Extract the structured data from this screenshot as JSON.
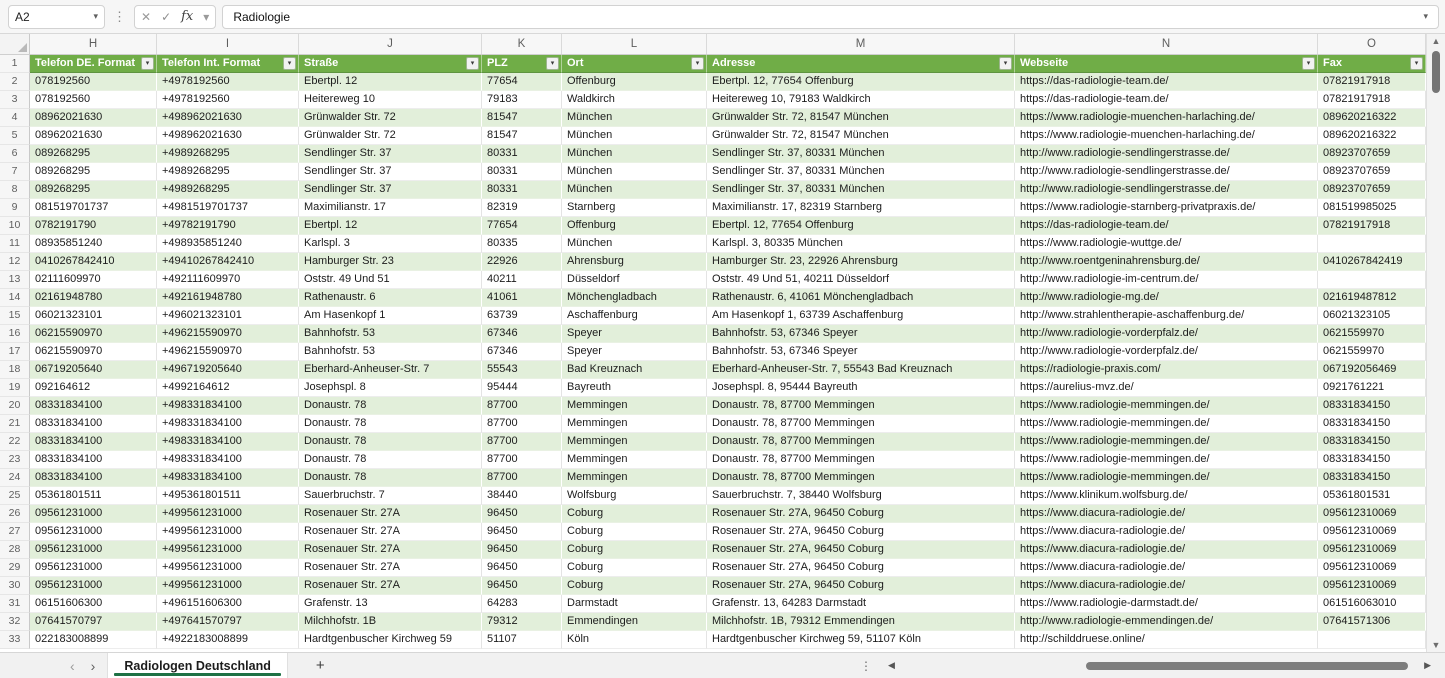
{
  "formula_bar": {
    "cell_reference": "A2",
    "formula_value": "Radiologie"
  },
  "grid": {
    "column_letters": [
      "H",
      "I",
      "J",
      "K",
      "L",
      "M",
      "N",
      "O"
    ],
    "header_row_number": "1",
    "headers": [
      "Telefon DE. Format",
      "Telefon Int. Format",
      "Straße",
      "PLZ",
      "Ort",
      "Adresse",
      "Webseite",
      "Fax"
    ],
    "first_data_row": 2,
    "rows": [
      [
        "078192560",
        "+4978192560",
        "Ebertpl. 12",
        "77654",
        "Offenburg",
        "Ebertpl. 12, 77654 Offenburg",
        "https://das-radiologie-team.de/",
        "07821917918"
      ],
      [
        "078192560",
        "+4978192560",
        "Heitereweg 10",
        "79183",
        "Waldkirch",
        "Heitereweg 10, 79183 Waldkirch",
        "https://das-radiologie-team.de/",
        "07821917918"
      ],
      [
        "08962021630",
        "+498962021630",
        "Grünwalder Str. 72",
        "81547",
        "München",
        "Grünwalder Str. 72, 81547 München",
        "https://www.radiologie-muenchen-harlaching.de/",
        "089620216322"
      ],
      [
        "08962021630",
        "+498962021630",
        "Grünwalder Str. 72",
        "81547",
        "München",
        "Grünwalder Str. 72, 81547 München",
        "https://www.radiologie-muenchen-harlaching.de/",
        "089620216322"
      ],
      [
        "089268295",
        "+4989268295",
        "Sendlinger Str. 37",
        "80331",
        "München",
        "Sendlinger Str. 37, 80331 München",
        "http://www.radiologie-sendlingerstrasse.de/",
        "08923707659"
      ],
      [
        "089268295",
        "+4989268295",
        "Sendlinger Str. 37",
        "80331",
        "München",
        "Sendlinger Str. 37, 80331 München",
        "http://www.radiologie-sendlingerstrasse.de/",
        "08923707659"
      ],
      [
        "089268295",
        "+4989268295",
        "Sendlinger Str. 37",
        "80331",
        "München",
        "Sendlinger Str. 37, 80331 München",
        "http://www.radiologie-sendlingerstrasse.de/",
        "08923707659"
      ],
      [
        "081519701737",
        "+4981519701737",
        "Maximilianstr. 17",
        "82319",
        "Starnberg",
        "Maximilianstr. 17, 82319 Starnberg",
        "https://www.radiologie-starnberg-privatpraxis.de/",
        "081519985025"
      ],
      [
        "0782191790",
        "+49782191790",
        "Ebertpl. 12",
        "77654",
        "Offenburg",
        "Ebertpl. 12, 77654 Offenburg",
        "https://das-radiologie-team.de/",
        "07821917918"
      ],
      [
        "08935851240",
        "+498935851240",
        "Karlspl. 3",
        "80335",
        "München",
        "Karlspl. 3, 80335 München",
        "https://www.radiologie-wuttge.de/",
        ""
      ],
      [
        "0410267842410",
        "+49410267842410",
        "Hamburger Str. 23",
        "22926",
        "Ahrensburg",
        "Hamburger Str. 23, 22926 Ahrensburg",
        "http://www.roentgeninahrensburg.de/",
        "0410267842419"
      ],
      [
        "02111609970",
        "+492111609970",
        "Oststr. 49 Und 51",
        "40211",
        "Düsseldorf",
        "Oststr. 49 Und 51, 40211 Düsseldorf",
        "http://www.radiologie-im-centrum.de/",
        ""
      ],
      [
        "02161948780",
        "+492161948780",
        "Rathenaustr. 6",
        "41061",
        "Mönchengladbach",
        "Rathenaustr. 6, 41061 Mönchengladbach",
        "http://www.radiologie-mg.de/",
        "021619487812"
      ],
      [
        "06021323101",
        "+496021323101",
        "Am Hasenkopf 1",
        "63739",
        "Aschaffenburg",
        "Am Hasenkopf 1, 63739 Aschaffenburg",
        "http://www.strahlentherapie-aschaffenburg.de/",
        "06021323105"
      ],
      [
        "06215590970",
        "+496215590970",
        "Bahnhofstr. 53",
        "67346",
        "Speyer",
        "Bahnhofstr. 53, 67346 Speyer",
        "http://www.radiologie-vorderpfalz.de/",
        "0621559970"
      ],
      [
        "06215590970",
        "+496215590970",
        "Bahnhofstr. 53",
        "67346",
        "Speyer",
        "Bahnhofstr. 53, 67346 Speyer",
        "http://www.radiologie-vorderpfalz.de/",
        "0621559970"
      ],
      [
        "06719205640",
        "+496719205640",
        "Eberhard-Anheuser-Str. 7",
        "55543",
        "Bad Kreuznach",
        "Eberhard-Anheuser-Str. 7, 55543 Bad Kreuznach",
        "https://radiologie-praxis.com/",
        "067192056469"
      ],
      [
        "092164612",
        "+4992164612",
        "Josephspl. 8",
        "95444",
        "Bayreuth",
        "Josephspl. 8, 95444 Bayreuth",
        "https://aurelius-mvz.de/",
        "0921761221"
      ],
      [
        "08331834100",
        "+498331834100",
        "Donaustr. 78",
        "87700",
        "Memmingen",
        "Donaustr. 78, 87700 Memmingen",
        "https://www.radiologie-memmingen.de/",
        "08331834150"
      ],
      [
        "08331834100",
        "+498331834100",
        "Donaustr. 78",
        "87700",
        "Memmingen",
        "Donaustr. 78, 87700 Memmingen",
        "https://www.radiologie-memmingen.de/",
        "08331834150"
      ],
      [
        "08331834100",
        "+498331834100",
        "Donaustr. 78",
        "87700",
        "Memmingen",
        "Donaustr. 78, 87700 Memmingen",
        "https://www.radiologie-memmingen.de/",
        "08331834150"
      ],
      [
        "08331834100",
        "+498331834100",
        "Donaustr. 78",
        "87700",
        "Memmingen",
        "Donaustr. 78, 87700 Memmingen",
        "https://www.radiologie-memmingen.de/",
        "08331834150"
      ],
      [
        "08331834100",
        "+498331834100",
        "Donaustr. 78",
        "87700",
        "Memmingen",
        "Donaustr. 78, 87700 Memmingen",
        "https://www.radiologie-memmingen.de/",
        "08331834150"
      ],
      [
        "05361801511",
        "+495361801511",
        "Sauerbruchstr. 7",
        "38440",
        "Wolfsburg",
        "Sauerbruchstr. 7, 38440 Wolfsburg",
        "https://www.klinikum.wolfsburg.de/",
        "05361801531"
      ],
      [
        "09561231000",
        "+499561231000",
        "Rosenauer Str. 27A",
        "96450",
        "Coburg",
        "Rosenauer Str. 27A, 96450 Coburg",
        "https://www.diacura-radiologie.de/",
        "095612310069"
      ],
      [
        "09561231000",
        "+499561231000",
        "Rosenauer Str. 27A",
        "96450",
        "Coburg",
        "Rosenauer Str. 27A, 96450 Coburg",
        "https://www.diacura-radiologie.de/",
        "095612310069"
      ],
      [
        "09561231000",
        "+499561231000",
        "Rosenauer Str. 27A",
        "96450",
        "Coburg",
        "Rosenauer Str. 27A, 96450 Coburg",
        "https://www.diacura-radiologie.de/",
        "095612310069"
      ],
      [
        "09561231000",
        "+499561231000",
        "Rosenauer Str. 27A",
        "96450",
        "Coburg",
        "Rosenauer Str. 27A, 96450 Coburg",
        "https://www.diacura-radiologie.de/",
        "095612310069"
      ],
      [
        "09561231000",
        "+499561231000",
        "Rosenauer Str. 27A",
        "96450",
        "Coburg",
        "Rosenauer Str. 27A, 96450 Coburg",
        "https://www.diacura-radiologie.de/",
        "095612310069"
      ],
      [
        "06151606300",
        "+496151606300",
        "Grafenstr. 13",
        "64283",
        "Darmstadt",
        "Grafenstr. 13, 64283 Darmstadt",
        "https://www.radiologie-darmstadt.de/",
        "061516063010"
      ],
      [
        "07641570797",
        "+497641570797",
        "Milchhofstr. 1B",
        "79312",
        "Emmendingen",
        "Milchhofstr. 1B, 79312 Emmendingen",
        "http://www.radiologie-emmendingen.de/",
        "07641571306"
      ],
      [
        "022183008899",
        "+4922183008899",
        "Hardtgenbuscher Kirchweg 59",
        "51107",
        "Köln",
        "Hardtgenbuscher Kirchweg 59, 51107 Köln",
        "http://schilddruese.online/",
        ""
      ]
    ]
  },
  "sheet_bar": {
    "active_tab": "Radiologen Deutschland",
    "add_sheet_label": "+"
  },
  "icons": {
    "filter": "▾",
    "cancel": "✕",
    "enter": "✓",
    "function": "fx",
    "chevron_down": "▾",
    "ellipsis_vertical": "⋮",
    "scroll_up": "▲",
    "scroll_down": "▼",
    "scroll_left": "◀",
    "scroll_right": "▶",
    "prev_sheet": "‹",
    "next_sheet": "›"
  },
  "colors": {
    "table_header_green": "#70AD47",
    "band_green": "#E2EFDA",
    "active_tab_underline": "#1E7145"
  }
}
